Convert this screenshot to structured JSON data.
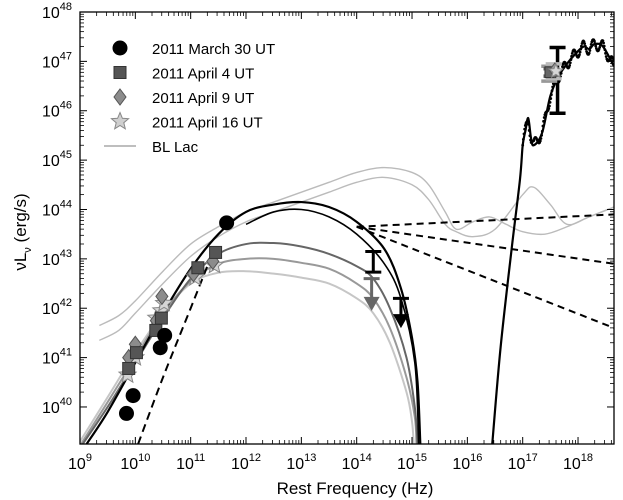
{
  "chart_data": {
    "type": "scatter",
    "xlabel": "Rest Frequency  (Hz)",
    "ylabel_main": "νL",
    "ylabel_sub": "ν",
    "ylabel_unit": "(erg/s)",
    "x_scale": "log10",
    "y_scale": "log10",
    "xlim_log": [
      9,
      18.65
    ],
    "ylim_log": [
      39.25,
      48
    ],
    "x_ticks": [
      {
        "exp": 9,
        "label_base": "10",
        "label_exp": "9"
      },
      {
        "exp": 10,
        "label_base": "10",
        "label_exp": "10"
      },
      {
        "exp": 11,
        "label_base": "10",
        "label_exp": "11"
      },
      {
        "exp": 12,
        "label_base": "10",
        "label_exp": "12"
      },
      {
        "exp": 13,
        "label_base": "10",
        "label_exp": "13"
      },
      {
        "exp": 14,
        "label_base": "10",
        "label_exp": "14"
      },
      {
        "exp": 15,
        "label_base": "10",
        "label_exp": "15"
      },
      {
        "exp": 16,
        "label_base": "10",
        "label_exp": "16"
      },
      {
        "exp": 17,
        "label_base": "10",
        "label_exp": "17"
      },
      {
        "exp": 18,
        "label_base": "10",
        "label_exp": "18"
      }
    ],
    "y_ticks": [
      {
        "exp": 40,
        "label_base": "10",
        "label_exp": "40"
      },
      {
        "exp": 41,
        "label_base": "10",
        "label_exp": "41"
      },
      {
        "exp": 42,
        "label_base": "10",
        "label_exp": "42"
      },
      {
        "exp": 43,
        "label_base": "10",
        "label_exp": "43"
      },
      {
        "exp": 44,
        "label_base": "10",
        "label_exp": "44"
      },
      {
        "exp": 45,
        "label_base": "10",
        "label_exp": "45"
      },
      {
        "exp": 46,
        "label_base": "10",
        "label_exp": "46"
      },
      {
        "exp": 47,
        "label_base": "10",
        "label_exp": "47"
      },
      {
        "exp": 48,
        "label_base": "10",
        "label_exp": "48"
      }
    ],
    "legend": {
      "position": "top-left",
      "entries": [
        {
          "label": "2011 March 30 UT",
          "marker": "circle",
          "color": "#000000"
        },
        {
          "label": "2011 April 4 UT",
          "marker": "square",
          "color": "#555555"
        },
        {
          "label": "2011 April 9 UT",
          "marker": "diamond",
          "color": "#8c8c8c"
        },
        {
          "label": "2011 April 16 UT",
          "marker": "star",
          "color": "#cfcfcf"
        },
        {
          "label": "BL Lac",
          "marker": "line",
          "color": "#b4b4b4"
        }
      ]
    },
    "series": [
      {
        "name": "2011 March 30 UT",
        "marker": "circle",
        "color": "#000000",
        "points": [
          [
            9.84,
            39.87
          ],
          [
            9.96,
            40.23
          ],
          [
            10.45,
            41.2
          ],
          [
            10.53,
            41.45
          ],
          [
            11.65,
            43.73
          ]
        ]
      },
      {
        "name": "2011 April 4 UT",
        "marker": "square",
        "color": "#555555",
        "points": [
          [
            9.88,
            40.78
          ],
          [
            10.02,
            41.1
          ],
          [
            10.37,
            41.55
          ],
          [
            10.47,
            41.8
          ],
          [
            11.13,
            42.82
          ],
          [
            11.45,
            43.13
          ]
        ]
      },
      {
        "name": "2011 April 9 UT",
        "marker": "diamond",
        "color": "#8c8c8c",
        "points": [
          [
            9.88,
            41.0
          ],
          [
            10.0,
            41.27
          ],
          [
            10.38,
            41.75
          ],
          [
            10.48,
            42.24
          ],
          [
            11.05,
            42.7
          ],
          [
            11.4,
            42.95
          ]
        ]
      },
      {
        "name": "2011 April 16 UT",
        "marker": "star",
        "color": "#d6d6d6",
        "points": [
          [
            9.86,
            40.65
          ],
          [
            10.0,
            41.0
          ],
          [
            10.38,
            41.8
          ],
          [
            10.47,
            41.95
          ],
          [
            10.52,
            42.1
          ],
          [
            11.08,
            42.62
          ],
          [
            11.43,
            42.87
          ]
        ]
      }
    ],
    "upper_limits": [
      {
        "x": 14.3,
        "y": 43.15,
        "ylow": 42.73,
        "arrow": false,
        "color": "#000000"
      },
      {
        "x": 14.27,
        "y": 42.6,
        "ylow": 42.15,
        "arrow": true,
        "color": "#666666"
      },
      {
        "x": 14.8,
        "y": 42.2,
        "ylow": 41.8,
        "arrow": true,
        "color": "#000000"
      }
    ],
    "xray_bars": [
      {
        "x": 17.63,
        "y_top": 47.28,
        "y_bottom": 45.95,
        "color": "#000000"
      },
      {
        "x": 17.48,
        "y_top": 46.9,
        "y_bottom": 46.6,
        "color": "#999999"
      },
      {
        "x": 17.52,
        "y_top": 46.85,
        "y_bottom": 46.7,
        "color": "#666666"
      },
      {
        "x": 17.56,
        "y_top": 46.95,
        "y_bottom": 46.65,
        "color": "#bbbbbb"
      }
    ],
    "sed_models": [
      {
        "name": "March 30",
        "color": "#000000",
        "width": 2.2,
        "points": [
          [
            9.12,
            39.25
          ],
          [
            9.5,
            39.9
          ],
          [
            10,
            40.9
          ],
          [
            10.5,
            41.9
          ],
          [
            11,
            42.8
          ],
          [
            11.5,
            43.5
          ],
          [
            12,
            43.95
          ],
          [
            12.5,
            44.1
          ],
          [
            13,
            44.15
          ],
          [
            13.5,
            44.05
          ],
          [
            14,
            43.75
          ],
          [
            14.5,
            43.2
          ],
          [
            14.8,
            42.4
          ],
          [
            15.0,
            41.4
          ],
          [
            15.1,
            40.5
          ],
          [
            15.15,
            39.25
          ]
        ]
      },
      {
        "name": "March 30 secondary",
        "color": "#000000",
        "width": 1.6,
        "points": [
          [
            12.0,
            43.7
          ],
          [
            12.5,
            43.95
          ],
          [
            13,
            44.0
          ],
          [
            13.5,
            43.85
          ],
          [
            14,
            43.5
          ],
          [
            14.5,
            42.9
          ],
          [
            14.8,
            42.2
          ],
          [
            15.05,
            40.9
          ],
          [
            15.12,
            39.25
          ]
        ]
      },
      {
        "name": "April 4",
        "color": "#666666",
        "width": 2.0,
        "points": [
          [
            9.05,
            39.25
          ],
          [
            9.5,
            40.0
          ],
          [
            10,
            40.9
          ],
          [
            10.5,
            41.8
          ],
          [
            11,
            42.6
          ],
          [
            11.5,
            43.1
          ],
          [
            12,
            43.3
          ],
          [
            12.5,
            43.32
          ],
          [
            13,
            43.25
          ],
          [
            13.5,
            43.1
          ],
          [
            14,
            42.85
          ],
          [
            14.3,
            42.6
          ],
          [
            14.6,
            42.0
          ],
          [
            14.9,
            41.0
          ],
          [
            15.05,
            40.0
          ],
          [
            15.1,
            39.25
          ]
        ]
      },
      {
        "name": "April 9",
        "color": "#999999",
        "width": 2.0,
        "points": [
          [
            9.02,
            39.25
          ],
          [
            9.5,
            40.1
          ],
          [
            10,
            41.0
          ],
          [
            10.5,
            41.9
          ],
          [
            11,
            42.55
          ],
          [
            11.5,
            42.9
          ],
          [
            12,
            43.0
          ],
          [
            12.5,
            43.0
          ],
          [
            13,
            42.92
          ],
          [
            13.5,
            42.8
          ],
          [
            14,
            42.5
          ],
          [
            14.3,
            42.2
          ],
          [
            14.6,
            41.6
          ],
          [
            14.9,
            40.6
          ],
          [
            15.05,
            39.8
          ],
          [
            15.08,
            39.25
          ]
        ]
      },
      {
        "name": "April 16",
        "color": "#c6c6c6",
        "width": 2.0,
        "points": [
          [
            9.0,
            39.3
          ],
          [
            9.5,
            40.2
          ],
          [
            10,
            41.1
          ],
          [
            10.5,
            41.9
          ],
          [
            11,
            42.5
          ],
          [
            11.5,
            42.72
          ],
          [
            12,
            42.75
          ],
          [
            12.5,
            42.7
          ],
          [
            13,
            42.62
          ],
          [
            13.5,
            42.5
          ],
          [
            14,
            42.2
          ],
          [
            14.3,
            41.9
          ],
          [
            14.6,
            41.3
          ],
          [
            14.9,
            40.3
          ],
          [
            15.0,
            39.7
          ],
          [
            15.03,
            39.25
          ]
        ]
      },
      {
        "name": "BL Lac upper",
        "color": "#bbbbbb",
        "width": 1.4,
        "points": [
          [
            9.35,
            41.65
          ],
          [
            9.7,
            41.85
          ],
          [
            10,
            42.15
          ],
          [
            10.5,
            42.75
          ],
          [
            11,
            43.3
          ],
          [
            11.5,
            43.65
          ],
          [
            12,
            43.95
          ],
          [
            12.5,
            44.15
          ],
          [
            13,
            44.35
          ],
          [
            13.5,
            44.55
          ],
          [
            14,
            44.75
          ],
          [
            14.5,
            44.85
          ],
          [
            15,
            44.75
          ],
          [
            15.3,
            44.5
          ],
          [
            15.6,
            43.95
          ],
          [
            15.8,
            43.6
          ],
          [
            16.1,
            43.75
          ],
          [
            16.4,
            43.85
          ],
          [
            16.7,
            43.7
          ],
          [
            17,
            43.55
          ],
          [
            17.4,
            43.5
          ],
          [
            17.8,
            43.65
          ],
          [
            18.2,
            43.85
          ],
          [
            18.65,
            44.05
          ]
        ]
      },
      {
        "name": "BL Lac lower",
        "color": "#bbbbbb",
        "width": 1.4,
        "points": [
          [
            9.35,
            41.35
          ],
          [
            9.7,
            41.55
          ],
          [
            10,
            41.9
          ],
          [
            10.5,
            42.5
          ],
          [
            11,
            43.05
          ],
          [
            11.5,
            43.45
          ],
          [
            12,
            43.75
          ],
          [
            12.5,
            43.95
          ],
          [
            13,
            44.15
          ],
          [
            13.5,
            44.35
          ],
          [
            14,
            44.55
          ],
          [
            14.5,
            44.65
          ],
          [
            15,
            44.5
          ],
          [
            15.3,
            44.2
          ],
          [
            15.6,
            43.7
          ],
          [
            15.8,
            43.55
          ],
          [
            16.1,
            43.45
          ],
          [
            16.5,
            43.6
          ],
          [
            17,
            44.3
          ],
          [
            17.2,
            44.45
          ],
          [
            17.5,
            44.1
          ],
          [
            17.8,
            43.7
          ],
          [
            18.2,
            43.85
          ],
          [
            18.65,
            44.05
          ]
        ]
      }
    ],
    "low_freq_dashed": {
      "color": "#000000",
      "points": [
        [
          10.05,
          39.25
        ],
        [
          10.5,
          40.6
        ],
        [
          11,
          42.0
        ],
        [
          11.3,
          42.85
        ],
        [
          11.35,
          43.0
        ]
      ]
    },
    "extrapolations": [
      {
        "color": "#000000",
        "points": [
          [
            14.0,
            43.65
          ],
          [
            18.65,
            42.9
          ]
        ]
      },
      {
        "color": "#000000",
        "points": [
          [
            14.0,
            43.65
          ],
          [
            18.65,
            41.6
          ]
        ]
      },
      {
        "color": "#000000",
        "points": [
          [
            14.0,
            43.65
          ],
          [
            18.65,
            43.9
          ]
        ]
      }
    ],
    "xray_curve": {
      "color": "#000000",
      "points": [
        [
          16.45,
          39.25
        ],
        [
          16.6,
          41.2
        ],
        [
          16.8,
          43.2
        ],
        [
          16.95,
          44.6
        ],
        [
          17.0,
          45.3
        ],
        [
          17.05,
          45.6
        ],
        [
          17.1,
          45.85
        ],
        [
          17.15,
          45.45
        ],
        [
          17.2,
          45.3
        ],
        [
          17.35,
          45.55
        ],
        [
          17.5,
          46.3
        ],
        [
          17.65,
          46.7
        ],
        [
          17.8,
          46.95
        ],
        [
          17.95,
          47.15
        ],
        [
          18.1,
          47.3
        ],
        [
          18.2,
          47.25
        ],
        [
          18.3,
          47.35
        ],
        [
          18.45,
          47.3
        ],
        [
          18.65,
          46.9
        ]
      ]
    }
  }
}
